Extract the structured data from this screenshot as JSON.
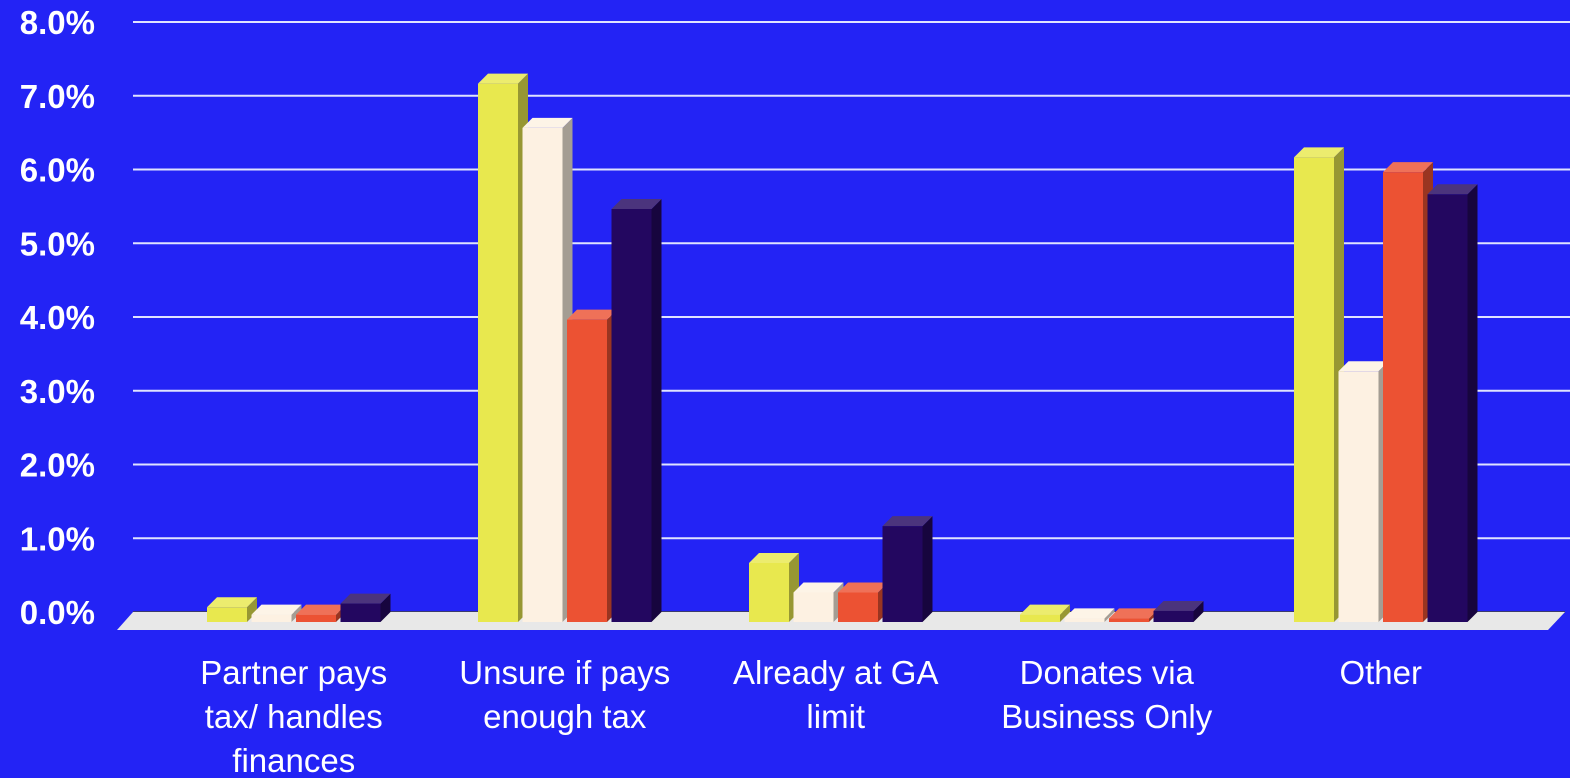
{
  "chart_data": {
    "type": "bar",
    "categories": [
      [
        "Partner pays",
        "tax/ handles",
        "finances"
      ],
      [
        "Unsure if pays",
        "enough tax"
      ],
      [
        "Already at GA",
        "limit"
      ],
      [
        "Donates via",
        "Business Only"
      ],
      [
        "Other"
      ]
    ],
    "series": [
      {
        "color": "#e8e84e",
        "values": [
          0.2,
          7.3,
          0.8,
          0.1,
          6.3
        ]
      },
      {
        "color": "#fdf1e2",
        "values": [
          0.1,
          6.7,
          0.4,
          0.05,
          3.4
        ]
      },
      {
        "color": "#ec5233",
        "values": [
          0.1,
          4.1,
          0.4,
          0.05,
          6.1
        ]
      },
      {
        "color": "#230760",
        "values": [
          0.25,
          5.6,
          1.3,
          0.15,
          5.8
        ]
      }
    ],
    "y_ticks": [
      "0.0%",
      "1.0%",
      "2.0%",
      "3.0%",
      "4.0%",
      "5.0%",
      "6.0%",
      "7.0%",
      "8.0%"
    ],
    "ylim": [
      0,
      8
    ],
    "grid": true,
    "colors": {
      "background": "#2323f5",
      "gridline": "#dfe3ff",
      "floor": "#e8e8e8"
    }
  }
}
